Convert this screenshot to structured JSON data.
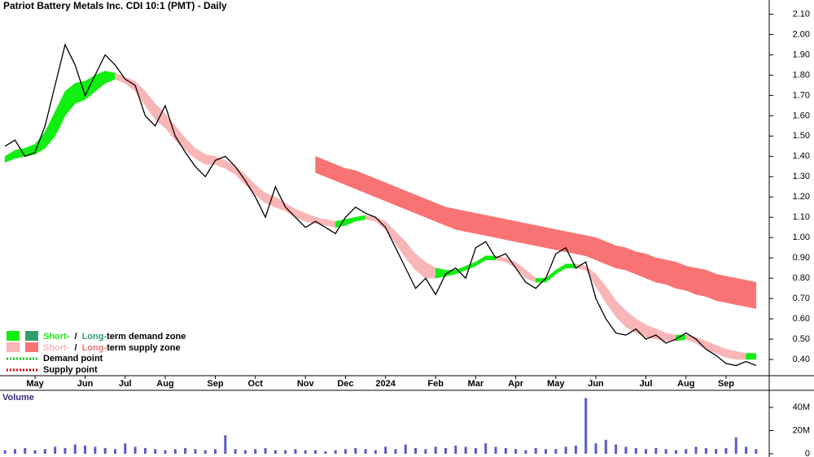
{
  "chart_data": {
    "type": "price-volume",
    "title": "Patriot Battery Metals Inc. CDI 10:1 (PMT) - Daily",
    "categories": [
      null,
      null,
      null,
      "May",
      null,
      null,
      null,
      null,
      "Jun",
      null,
      null,
      null,
      "Jul",
      null,
      null,
      null,
      "Aug",
      null,
      null,
      null,
      null,
      "Sep",
      null,
      null,
      null,
      "Oct",
      null,
      null,
      null,
      null,
      "Nov",
      null,
      null,
      null,
      "Dec",
      null,
      null,
      null,
      "2024",
      null,
      null,
      null,
      null,
      "Feb",
      null,
      null,
      null,
      "Mar",
      null,
      null,
      null,
      "Apr",
      null,
      null,
      null,
      "May",
      null,
      null,
      null,
      "Jun",
      null,
      null,
      null,
      null,
      "Jul",
      null,
      null,
      null,
      "Aug",
      null,
      null,
      null,
      "Sep",
      null,
      null,
      null
    ],
    "price": {
      "color": "#000000",
      "values": [
        1.45,
        1.48,
        1.4,
        1.42,
        1.55,
        1.75,
        1.95,
        1.85,
        1.7,
        1.8,
        1.9,
        1.85,
        1.78,
        1.75,
        1.6,
        1.55,
        1.65,
        1.5,
        1.42,
        1.35,
        1.3,
        1.38,
        1.4,
        1.35,
        1.28,
        1.2,
        1.1,
        1.25,
        1.15,
        1.1,
        1.05,
        1.08,
        1.05,
        1.02,
        1.1,
        1.15,
        1.12,
        1.1,
        1.05,
        0.95,
        0.85,
        0.75,
        0.8,
        0.72,
        0.82,
        0.85,
        0.8,
        0.95,
        0.98,
        0.9,
        0.92,
        0.85,
        0.78,
        0.75,
        0.8,
        0.92,
        0.95,
        0.85,
        0.88,
        0.7,
        0.6,
        0.53,
        0.52,
        0.55,
        0.5,
        0.52,
        0.48,
        0.5,
        0.53,
        0.5,
        0.45,
        0.42,
        0.38,
        0.37,
        0.39,
        0.37
      ]
    },
    "short_zone": {
      "demand_color": "#11ee11",
      "supply_color": "#f9b6b6",
      "upper": [
        1.4,
        1.43,
        1.44,
        1.46,
        1.52,
        1.62,
        1.72,
        1.76,
        1.77,
        1.8,
        1.82,
        1.81,
        1.79,
        1.77,
        1.72,
        1.66,
        1.61,
        1.55,
        1.49,
        1.44,
        1.41,
        1.4,
        1.38,
        1.35,
        1.31,
        1.26,
        1.22,
        1.2,
        1.17,
        1.14,
        1.12,
        1.1,
        1.09,
        1.08,
        1.09,
        1.1,
        1.11,
        1.1,
        1.08,
        1.03,
        0.98,
        0.92,
        0.88,
        0.85,
        0.84,
        0.84,
        0.86,
        0.88,
        0.91,
        0.91,
        0.9,
        0.88,
        0.84,
        0.8,
        0.8,
        0.84,
        0.87,
        0.87,
        0.86,
        0.82,
        0.76,
        0.69,
        0.64,
        0.6,
        0.57,
        0.55,
        0.53,
        0.52,
        0.52,
        0.51,
        0.49,
        0.47,
        0.45,
        0.44,
        0.43,
        0.43
      ],
      "lower": [
        1.37,
        1.39,
        1.4,
        1.41,
        1.44,
        1.5,
        1.6,
        1.66,
        1.68,
        1.72,
        1.76,
        1.78,
        1.76,
        1.72,
        1.65,
        1.58,
        1.54,
        1.48,
        1.43,
        1.39,
        1.36,
        1.36,
        1.34,
        1.31,
        1.26,
        1.21,
        1.17,
        1.15,
        1.13,
        1.1,
        1.08,
        1.07,
        1.06,
        1.05,
        1.06,
        1.08,
        1.09,
        1.08,
        1.04,
        0.97,
        0.9,
        0.84,
        0.8,
        0.8,
        0.81,
        0.82,
        0.84,
        0.86,
        0.89,
        0.89,
        0.88,
        0.85,
        0.8,
        0.78,
        0.78,
        0.82,
        0.85,
        0.85,
        0.84,
        0.76,
        0.68,
        0.61,
        0.56,
        0.53,
        0.51,
        0.5,
        0.49,
        0.49,
        0.5,
        0.48,
        0.45,
        0.43,
        0.41,
        0.4,
        0.4,
        0.4
      ]
    },
    "long_zone": {
      "color": "#f87474",
      "upper": [
        null,
        null,
        null,
        null,
        null,
        null,
        null,
        null,
        null,
        null,
        null,
        null,
        null,
        null,
        null,
        null,
        null,
        null,
        null,
        null,
        null,
        null,
        null,
        null,
        null,
        null,
        null,
        null,
        null,
        null,
        null,
        1.4,
        1.38,
        1.36,
        1.34,
        1.33,
        1.31,
        1.29,
        1.27,
        1.25,
        1.23,
        1.21,
        1.19,
        1.17,
        1.15,
        1.14,
        1.13,
        1.12,
        1.11,
        1.1,
        1.09,
        1.08,
        1.07,
        1.06,
        1.05,
        1.04,
        1.03,
        1.02,
        1.01,
        1.0,
        0.98,
        0.96,
        0.95,
        0.93,
        0.92,
        0.9,
        0.89,
        0.88,
        0.86,
        0.85,
        0.84,
        0.82,
        0.81,
        0.8,
        0.79,
        0.78
      ],
      "lower": [
        null,
        null,
        null,
        null,
        null,
        null,
        null,
        null,
        null,
        null,
        null,
        null,
        null,
        null,
        null,
        null,
        null,
        null,
        null,
        null,
        null,
        null,
        null,
        null,
        null,
        null,
        null,
        null,
        null,
        null,
        null,
        1.32,
        1.3,
        1.28,
        1.26,
        1.24,
        1.22,
        1.2,
        1.18,
        1.16,
        1.14,
        1.12,
        1.1,
        1.08,
        1.06,
        1.04,
        1.03,
        1.02,
        1.01,
        1.0,
        0.99,
        0.98,
        0.97,
        0.96,
        0.95,
        0.94,
        0.93,
        0.92,
        0.91,
        0.89,
        0.87,
        0.85,
        0.84,
        0.82,
        0.8,
        0.78,
        0.77,
        0.75,
        0.74,
        0.72,
        0.71,
        0.69,
        0.68,
        0.67,
        0.66,
        0.65
      ]
    },
    "ylim": [
      0.32,
      2.17
    ],
    "yticks": [
      {
        "value": 2.1,
        "label": "2.10"
      },
      {
        "value": 2.0,
        "label": "2.00"
      },
      {
        "value": 1.9,
        "label": "1.90"
      },
      {
        "value": 1.8,
        "label": "1.80"
      },
      {
        "value": 1.7,
        "label": "1.70"
      },
      {
        "value": 1.6,
        "label": "1.60"
      },
      {
        "value": 1.5,
        "label": "1.50"
      },
      {
        "value": 1.4,
        "label": "1.40"
      },
      {
        "value": 1.3,
        "label": "1.30"
      },
      {
        "value": 1.2,
        "label": "1.20"
      },
      {
        "value": 1.1,
        "label": "1.10"
      },
      {
        "value": 1.0,
        "label": "1.00"
      },
      {
        "value": 0.9,
        "label": "0.90"
      },
      {
        "value": 0.8,
        "label": "0.80"
      },
      {
        "value": 0.7,
        "label": "0.70"
      },
      {
        "value": 0.6,
        "label": "0.60"
      },
      {
        "value": 0.5,
        "label": "0.50"
      },
      {
        "value": 0.4,
        "label": "0.40"
      }
    ],
    "volume": {
      "label": "Volume",
      "color": "#5a5ac8",
      "values": [
        3000000,
        4000000,
        5000000,
        3000000,
        4000000,
        6000000,
        5000000,
        8000000,
        7000000,
        6000000,
        5000000,
        4000000,
        9000000,
        6000000,
        5000000,
        4000000,
        3000000,
        4000000,
        5000000,
        4000000,
        3000000,
        4000000,
        16000000,
        4000000,
        3000000,
        4000000,
        5000000,
        3000000,
        3000000,
        4000000,
        3000000,
        3000000,
        2000000,
        3000000,
        4000000,
        5000000,
        4000000,
        3000000,
        6000000,
        4000000,
        8000000,
        5000000,
        4000000,
        6000000,
        5000000,
        7000000,
        6000000,
        5000000,
        9000000,
        6000000,
        5000000,
        4000000,
        3000000,
        5000000,
        4000000,
        4000000,
        6000000,
        7000000,
        48000000,
        9000000,
        12000000,
        8000000,
        6000000,
        5000000,
        4000000,
        5000000,
        4000000,
        3000000,
        4000000,
        6000000,
        5000000,
        4000000,
        5000000,
        14000000,
        6000000,
        4000000
      ],
      "ylim": [
        0,
        54000000
      ],
      "yticks": [
        {
          "value": 40000000,
          "label": "40M"
        },
        {
          "value": 20000000,
          "label": "20M"
        },
        0
      ]
    },
    "legend": {
      "demand": {
        "short": "Short-",
        "sep": "/",
        "long": "Long-",
        "rest": "term demand zone"
      },
      "supply": {
        "short": "Short-",
        "sep": "/",
        "long": "Long-",
        "rest": "term supply zone"
      },
      "demand_point": "Demand point",
      "supply_point": "Supply point"
    }
  }
}
